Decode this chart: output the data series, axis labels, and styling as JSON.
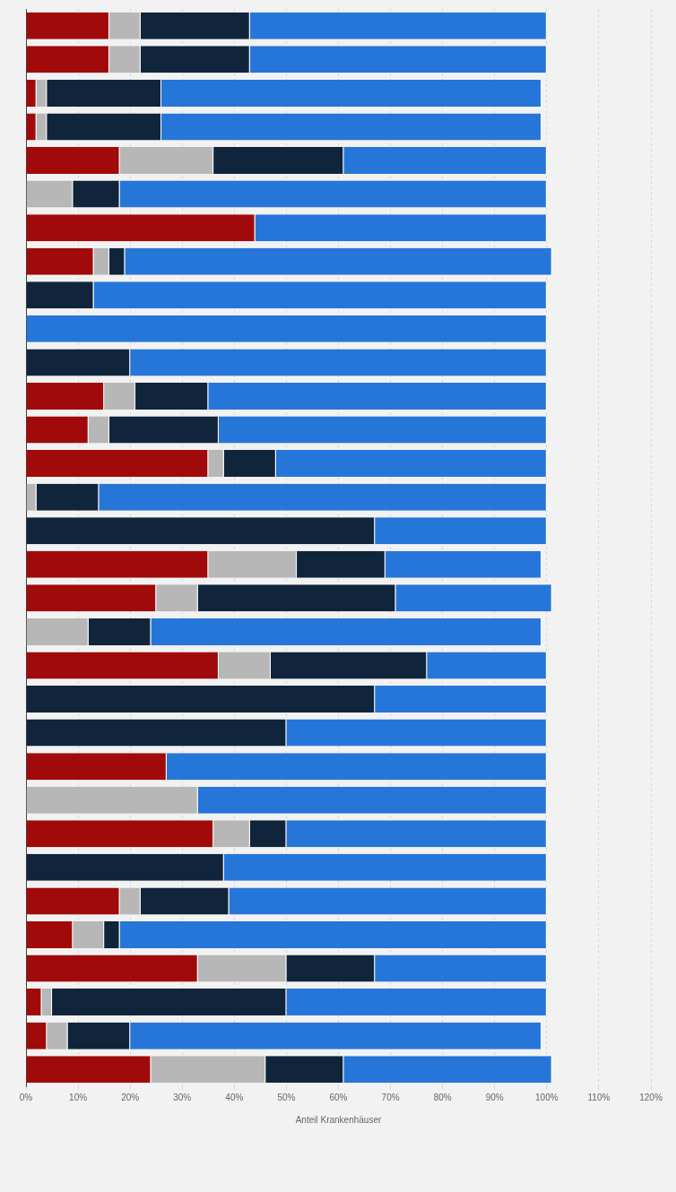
{
  "chart_data": {
    "type": "bar",
    "orientation": "horizontal",
    "stacked": true,
    "xlabel": "Anteil Krankenhäuser",
    "categories": [
      null,
      null,
      null,
      null,
      null,
      null,
      null,
      null,
      null,
      null,
      null,
      null,
      null,
      null,
      null,
      null,
      null,
      null,
      null,
      null,
      null,
      null,
      null,
      null,
      null,
      null,
      null,
      null,
      null,
      null,
      null,
      null
    ],
    "series": [
      {
        "color": "#a10a0a",
        "values": [
          16,
          16,
          2,
          2,
          18,
          0,
          44,
          13,
          0,
          0,
          0,
          15,
          12,
          35,
          0,
          0,
          35,
          25,
          0,
          37,
          0,
          0,
          27,
          0,
          36,
          0,
          18,
          9,
          33,
          3,
          4,
          24
        ]
      },
      {
        "color": "#b7b7b7",
        "values": [
          6,
          6,
          2,
          2,
          18,
          9,
          0,
          3,
          0,
          0,
          0,
          6,
          4,
          3,
          2,
          0,
          17,
          8,
          12,
          10,
          0,
          0,
          0,
          33,
          7,
          0,
          4,
          6,
          17,
          2,
          4,
          22
        ]
      },
      {
        "color": "#10253c",
        "values": [
          21,
          21,
          22,
          22,
          25,
          9,
          0,
          3,
          13,
          0,
          20,
          14,
          21,
          10,
          12,
          67,
          17,
          38,
          12,
          30,
          67,
          50,
          0,
          0,
          7,
          38,
          17,
          3,
          17,
          45,
          12,
          15
        ]
      },
      {
        "color": "#2676d9",
        "values": [
          57,
          57,
          73,
          73,
          39,
          82,
          56,
          82,
          87,
          100,
          80,
          65,
          63,
          52,
          86,
          33,
          30,
          30,
          75,
          23,
          33,
          50,
          73,
          67,
          50,
          62,
          61,
          82,
          33,
          50,
          79,
          40
        ]
      }
    ],
    "xlim": [
      0,
      120
    ],
    "xticks": [
      {
        "value": 0,
        "label": "0%"
      },
      {
        "value": 10,
        "label": "10%"
      },
      {
        "value": 20,
        "label": "20%"
      },
      {
        "value": 30,
        "label": "30%"
      },
      {
        "value": 40,
        "label": "40%"
      },
      {
        "value": 50,
        "label": "50%"
      },
      {
        "value": 60,
        "label": "60%"
      },
      {
        "value": 70,
        "label": "70%"
      },
      {
        "value": 80,
        "label": "80%"
      },
      {
        "value": 90,
        "label": "90%"
      },
      {
        "value": 100,
        "label": "100%"
      },
      {
        "value": 110,
        "label": "110%"
      },
      {
        "value": 120,
        "label": "120%"
      }
    ],
    "grid": "x",
    "tick_labels": "x",
    "legend": false
  }
}
